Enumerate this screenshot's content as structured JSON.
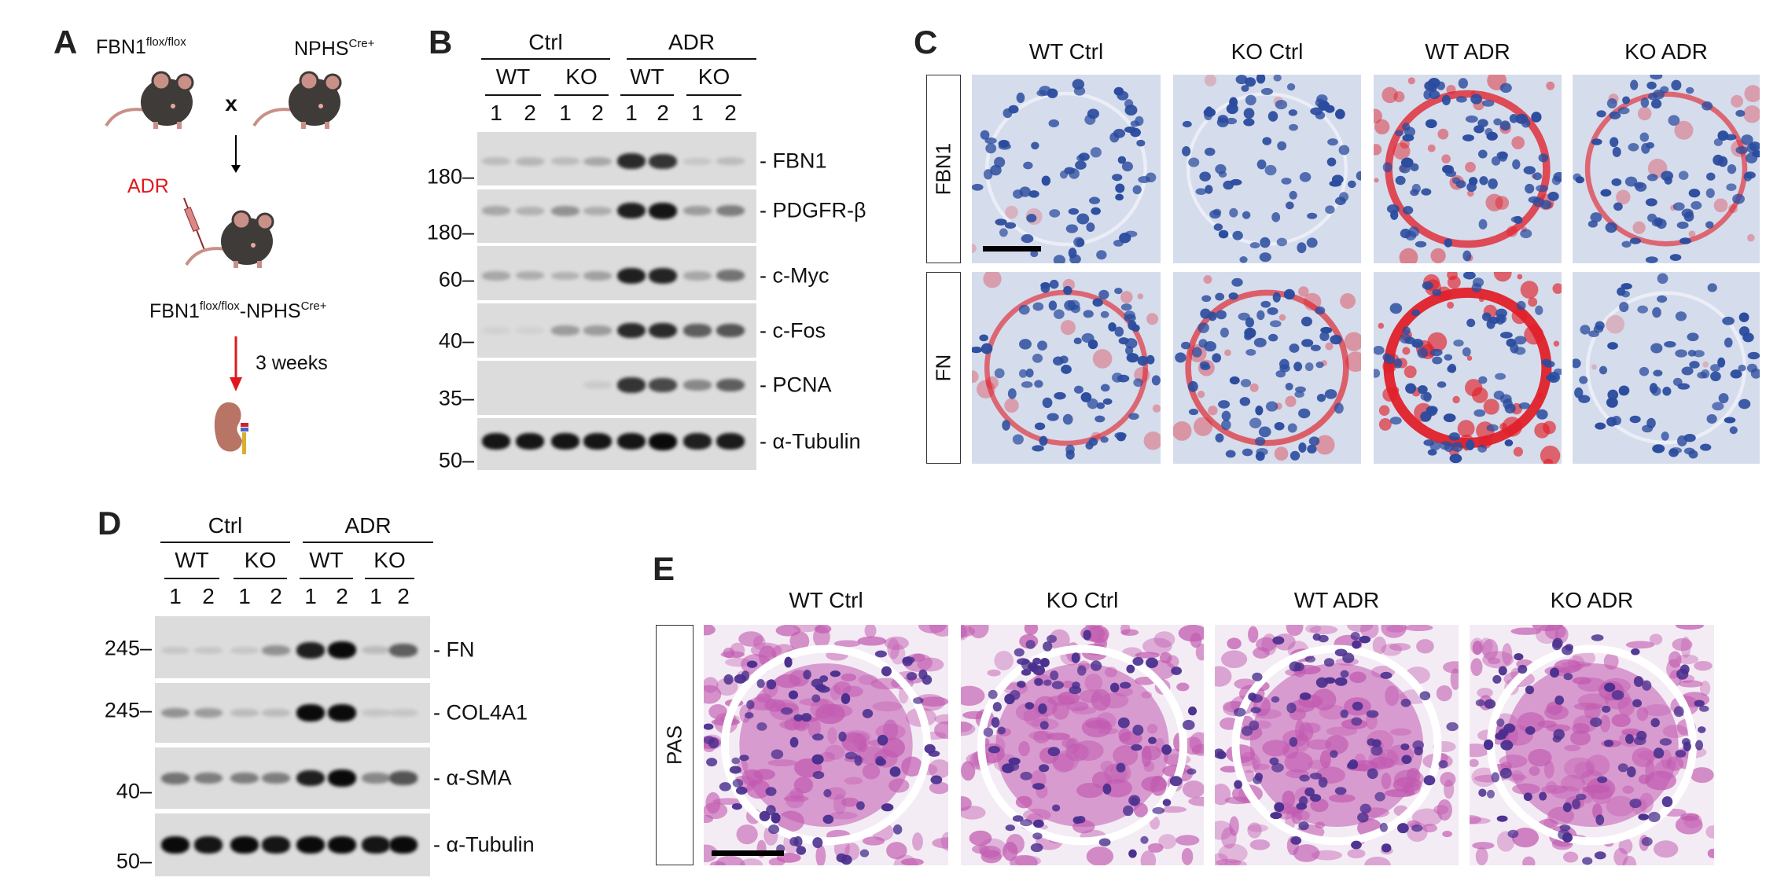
{
  "panels": {
    "A": {
      "label": "A",
      "parent1": {
        "base": "FBN1",
        "sup": "flox/flox"
      },
      "parent2": {
        "base": "NPHS",
        "sup": "Cre+"
      },
      "cross": "x",
      "treatment": "ADR",
      "offspring": {
        "base1": "FBN1",
        "sup1": "flox/flox",
        "base2": "-NPHS",
        "sup2": "Cre+"
      },
      "duration": "3 weeks",
      "colors": {
        "mouse": "#3f3b39",
        "tail": "#c99088",
        "arrow_red": "#e0181e",
        "kidney": "#b87565"
      }
    },
    "B": {
      "label": "B",
      "groups": [
        "Ctrl",
        "ADR"
      ],
      "genotypes": [
        "WT",
        "KO",
        "WT",
        "KO"
      ],
      "lanes": [
        "1",
        "2",
        "1",
        "2",
        "1",
        "2",
        "1",
        "2"
      ],
      "blots": [
        {
          "protein": "FBN1",
          "mw": "180",
          "intensity": [
            0.15,
            0.18,
            0.15,
            0.25,
            0.85,
            0.8,
            0.1,
            0.15
          ]
        },
        {
          "protein": "PDGFR-β",
          "mw": "180",
          "intensity": [
            0.25,
            0.2,
            0.35,
            0.22,
            0.9,
            0.95,
            0.3,
            0.45
          ]
        },
        {
          "protein": "c-Myc",
          "mw": "60",
          "intensity": [
            0.25,
            0.22,
            0.2,
            0.28,
            0.9,
            0.88,
            0.25,
            0.5
          ]
        },
        {
          "protein": "c-Fos",
          "mw": "40",
          "intensity": [
            0.05,
            0.05,
            0.3,
            0.3,
            0.85,
            0.85,
            0.6,
            0.65
          ]
        },
        {
          "protein": "PCNA",
          "mw": "35",
          "intensity": [
            0,
            0,
            0,
            0.08,
            0.8,
            0.7,
            0.4,
            0.6
          ]
        },
        {
          "protein": "α-Tubulin",
          "mw": "50",
          "intensity": [
            0.95,
            0.95,
            0.95,
            0.95,
            0.95,
            1,
            0.9,
            0.92
          ]
        }
      ]
    },
    "C": {
      "label": "C",
      "columns": [
        "WT Ctrl",
        "KO Ctrl",
        "WT ADR",
        "KO ADR"
      ],
      "rows": [
        "FBN1",
        "FN"
      ],
      "red_stain_level": [
        [
          0.05,
          0.03,
          0.55,
          0.25
        ],
        [
          0.25,
          0.35,
          0.9,
          0.05
        ]
      ],
      "colors": {
        "nuclei": "#2b4c9e",
        "background": "#d5dcec",
        "stain": "#e0202a"
      }
    },
    "D": {
      "label": "D",
      "groups": [
        "Ctrl",
        "ADR"
      ],
      "genotypes": [
        "WT",
        "KO",
        "WT",
        "KO"
      ],
      "lanes": [
        "1",
        "2",
        "1",
        "2",
        "1",
        "2",
        "1",
        "2"
      ],
      "blots": [
        {
          "protein": "FN",
          "mw": "245",
          "intensity": [
            0.1,
            0.1,
            0.1,
            0.35,
            0.9,
            1,
            0.15,
            0.6
          ]
        },
        {
          "protein": "COL4A1",
          "mw": "245",
          "intensity": [
            0.35,
            0.3,
            0.15,
            0.15,
            1,
            1,
            0.1,
            0.1
          ]
        },
        {
          "protein": "α-SMA",
          "mw": "40",
          "intensity": [
            0.5,
            0.45,
            0.45,
            0.45,
            0.9,
            1,
            0.4,
            0.65
          ]
        },
        {
          "protein": "α-Tubulin",
          "mw": "50",
          "intensity": [
            1,
            0.95,
            1,
            0.95,
            1,
            1,
            0.95,
            1
          ]
        }
      ]
    },
    "E": {
      "label": "E",
      "columns": [
        "WT Ctrl",
        "KO Ctrl",
        "WT ADR",
        "KO ADR"
      ],
      "rows": [
        "PAS"
      ],
      "colors": {
        "nuclei": "#4a2f8e",
        "tissue": "#c15ab0",
        "background": "#f4ecf4"
      }
    }
  }
}
